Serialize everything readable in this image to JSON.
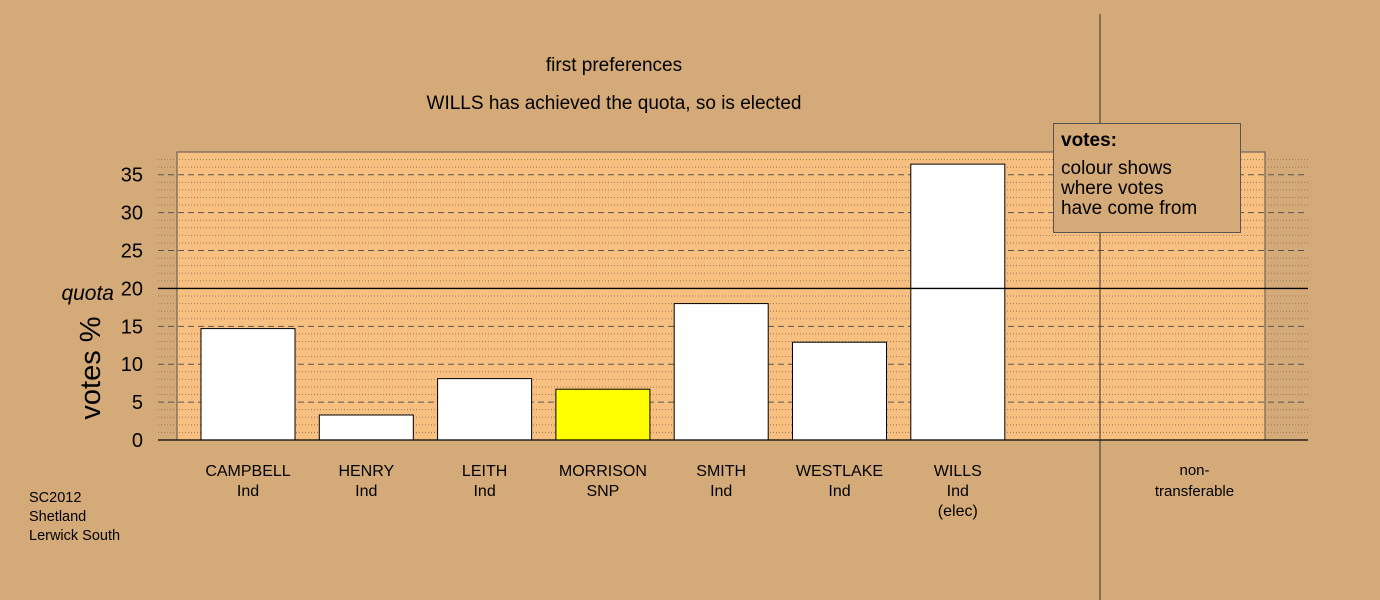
{
  "chart_data": {
    "type": "bar",
    "title": "first preferences",
    "subtitle": "WILLS has achieved the quota, so is elected",
    "ylabel": "votes %",
    "quota_label": "quota",
    "quota": 20,
    "ylim": [
      0,
      38
    ],
    "yticks": [
      0,
      5,
      10,
      15,
      20,
      25,
      30,
      35
    ],
    "grid": true,
    "categories": [
      {
        "name": "CAMPBELL",
        "party": "Ind",
        "note": ""
      },
      {
        "name": "HENRY",
        "party": "Ind",
        "note": ""
      },
      {
        "name": "LEITH",
        "party": "Ind",
        "note": ""
      },
      {
        "name": "MORRISON",
        "party": "SNP",
        "note": ""
      },
      {
        "name": "SMITH",
        "party": "Ind",
        "note": ""
      },
      {
        "name": "WESTLAKE",
        "party": "Ind",
        "note": ""
      },
      {
        "name": "WILLS",
        "party": "Ind",
        "note": "(elec)"
      }
    ],
    "values": [
      14.7,
      3.3,
      8.1,
      6.7,
      18.0,
      12.9,
      36.4
    ],
    "bar_colors": [
      "#ffffff",
      "#ffffff",
      "#ffffff",
      "#ffff00",
      "#ffffff",
      "#ffffff",
      "#ffffff"
    ],
    "non_transferable": {
      "label_line1": "non-",
      "label_line2": "transferable",
      "value": 0
    },
    "legend": {
      "title": "votes:",
      "text": "colour shows\nwhere votes\nhave come from"
    },
    "footnote": "SC2012\nShetland\nLerwick South",
    "colors": {
      "background": "#d4aa78",
      "plot_area": "#f8c080",
      "bar_outline": "#000000"
    }
  }
}
